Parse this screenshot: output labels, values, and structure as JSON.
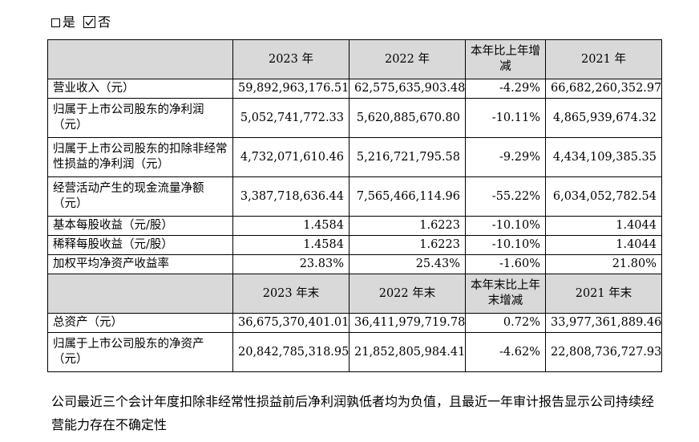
{
  "top_options": {
    "yes_label": "是",
    "no_label": "否"
  },
  "table": {
    "header1": {
      "col1": "2023 年",
      "col2": "2022 年",
      "col3": "本年比上年增减",
      "col4": "2021 年"
    },
    "rows1": [
      {
        "label": "营业收入（元）",
        "v2023": "59,892,963,176.51",
        "v2022": "62,575,635,903.48",
        "change": "-4.29%",
        "v2021": "66,682,260,352.97"
      },
      {
        "label": "归属于上市公司股东的净利润（元）",
        "v2023": "5,052,741,772.33",
        "v2022": "5,620,885,670.80",
        "change": "-10.11%",
        "v2021": "4,865,939,674.32"
      },
      {
        "label": "归属于上市公司股东的扣除非经常性损益的净利润（元）",
        "v2023": "4,732,071,610.46",
        "v2022": "5,216,721,795.58",
        "change": "-9.29%",
        "v2021": "4,434,109,385.35"
      },
      {
        "label": "经营活动产生的现金流量净额（元）",
        "v2023": "3,387,718,636.44",
        "v2022": "7,565,466,114.96",
        "change": "-55.22%",
        "v2021": "6,034,052,782.54"
      },
      {
        "label": "基本每股收益（元/股）",
        "v2023": "1.4584",
        "v2022": "1.6223",
        "change": "-10.10%",
        "v2021": "1.4044"
      },
      {
        "label": "稀释每股收益（元/股）",
        "v2023": "1.4584",
        "v2022": "1.6223",
        "change": "-10.10%",
        "v2021": "1.4044"
      },
      {
        "label": "加权平均净资产收益率",
        "v2023": "23.83%",
        "v2022": "25.43%",
        "change": "-1.60%",
        "v2021": "21.80%"
      }
    ],
    "header2": {
      "col1": "2023 年末",
      "col2": "2022 年末",
      "col3": "本年末比上年末增减",
      "col4": "2021 年末"
    },
    "rows2": [
      {
        "label": "总资产（元）",
        "v2023": "36,675,370,401.01",
        "v2022": "36,411,979,719.78",
        "change": "0.72%",
        "v2021": "33,977,361,889.46"
      },
      {
        "label": "归属于上市公司股东的净资产（元）",
        "v2023": "20,842,785,318.95",
        "v2022": "21,852,805,984.41",
        "change": "-4.62%",
        "v2021": "22,808,736,727.93"
      }
    ]
  },
  "footnote": "公司最近三个会计年度扣除非经常性损益前后净利润孰低者均为负值，且最近一年审计报告显示公司持续经营能力存在不确定性"
}
